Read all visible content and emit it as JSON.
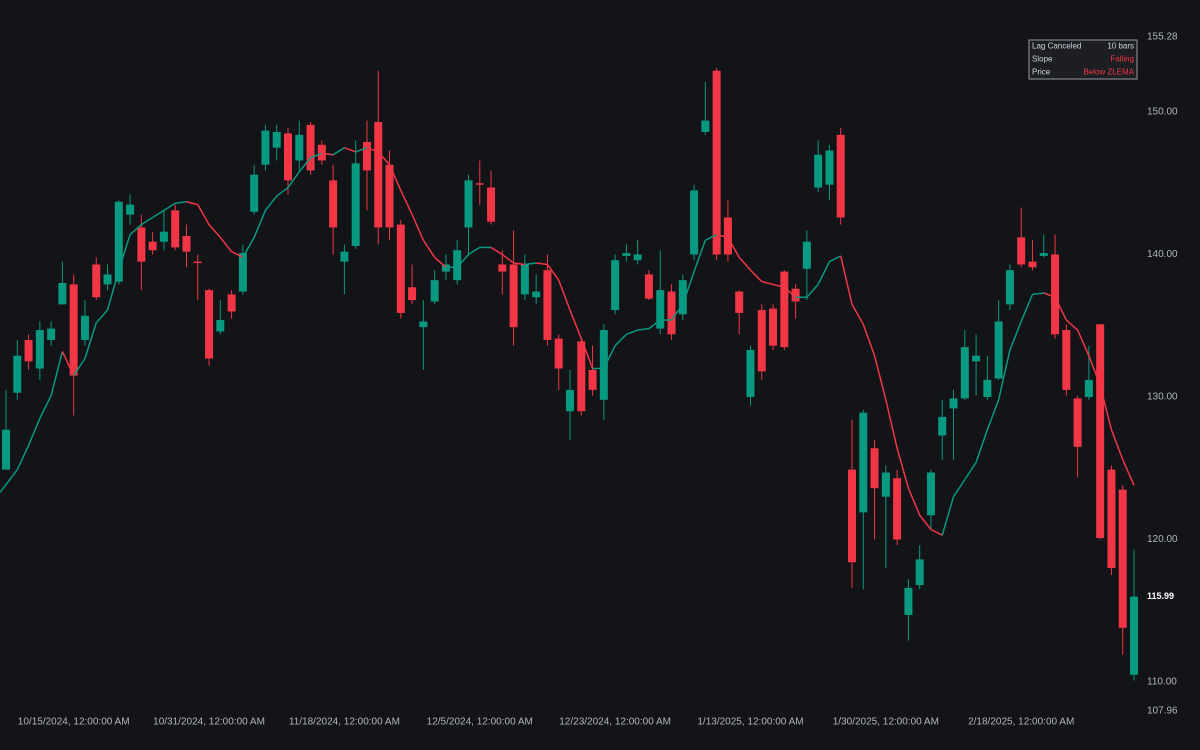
{
  "chart_data": {
    "type": "candlestick",
    "categories": [
      null,
      null,
      null,
      null,
      null,
      null,
      "10/15/2024, 12:00:00 AM",
      null,
      null,
      null,
      null,
      null,
      null,
      null,
      null,
      null,
      null,
      null,
      "10/31/2024, 12:00:00 AM",
      null,
      null,
      null,
      null,
      null,
      null,
      null,
      null,
      null,
      null,
      null,
      "11/18/2024, 12:00:00 AM",
      null,
      null,
      null,
      null,
      null,
      null,
      null,
      null,
      null,
      null,
      null,
      "12/5/2024, 12:00:00 AM",
      null,
      null,
      null,
      null,
      null,
      null,
      null,
      null,
      null,
      null,
      null,
      "12/23/2024, 12:00:00 AM",
      null,
      null,
      null,
      null,
      null,
      null,
      null,
      null,
      null,
      null,
      null,
      "1/13/2025, 12:00:00 AM",
      null,
      null,
      null,
      null,
      null,
      null,
      null,
      null,
      null,
      null,
      null,
      "1/30/2025, 12:00:00 AM",
      null,
      null,
      null,
      null,
      null,
      null,
      null,
      null,
      null,
      null,
      null,
      "2/18/2025, 12:00:00 AM",
      null,
      null,
      null,
      null,
      null,
      null,
      null,
      null,
      null,
      null
    ],
    "open": [
      124.9,
      130.3,
      134,
      132,
      134,
      136.5,
      137.9,
      134,
      139.3,
      137.9,
      138.1,
      142.8,
      141.9,
      140.9,
      140.9,
      143.1,
      141.3,
      139.5,
      137.5,
      134.6,
      137.2,
      137.4,
      143,
      146.3,
      147.5,
      148.5,
      146.6,
      149.1,
      147.7,
      145.2,
      139.5,
      140.6,
      147.9,
      149.3,
      146.3,
      142.1,
      137.7,
      134.9,
      136.7,
      138.8,
      138.2,
      141.9,
      145,
      144.7,
      139.3,
      139.3,
      137.2,
      137,
      138.9,
      134.1,
      129,
      133.9,
      131.9,
      129.8,
      136.1,
      139.9,
      139.6,
      138.6,
      134.8,
      137.4,
      135.8,
      140,
      148.6,
      152.9,
      142.6,
      137.4,
      130,
      136.1,
      136.2,
      138.8,
      137.6,
      139,
      144.7,
      144.9,
      148.4,
      124.9,
      121.9,
      126.4,
      123,
      124.3,
      114.7,
      116.8,
      121.7,
      127.3,
      129.2,
      129.9,
      132.5,
      130,
      131.3,
      136.5,
      141.2,
      139.5,
      139.9,
      140,
      134.7,
      129.9,
      130,
      135.1,
      124.9,
      123.5,
      110.5
    ],
    "high": [
      130.5,
      134,
      134.4,
      135.3,
      135.3,
      139.5,
      138.6,
      136.8,
      139.8,
      139.3,
      143.8,
      144.2,
      142.8,
      141.6,
      143.1,
      143.5,
      142.1,
      140,
      137.6,
      136.8,
      137.5,
      140.7,
      146.3,
      149.1,
      149.1,
      148.9,
      149.4,
      149.3,
      148,
      146.3,
      140.7,
      148,
      149.4,
      152.9,
      147.3,
      142.4,
      139.3,
      136.8,
      138.9,
      140,
      141,
      145.6,
      146.6,
      145.9,
      140.3,
      141.7,
      140,
      138.6,
      140,
      134.4,
      131.9,
      134,
      133.6,
      135.1,
      140,
      140.7,
      141,
      138.9,
      140.3,
      137.9,
      138.6,
      144.9,
      152.1,
      153.1,
      143.8,
      137.5,
      133.6,
      136.5,
      136.5,
      138.9,
      137.9,
      141.7,
      148,
      147.7,
      148.9,
      128.4,
      129.1,
      127,
      125.2,
      124.9,
      117.2,
      119.6,
      124.9,
      129.8,
      130.5,
      134.7,
      134.4,
      132.9,
      136.8,
      139.3,
      143.3,
      141,
      141.4,
      141.4,
      135.1,
      130.1,
      133.6,
      135.1,
      125.2,
      123.8,
      119.3
    ],
    "low": [
      124.9,
      129.8,
      131.9,
      131.2,
      133.6,
      136.5,
      128.7,
      133.6,
      136.8,
      137.5,
      137.9,
      142.1,
      137.5,
      140,
      140.3,
      140.3,
      139.1,
      136.8,
      132.2,
      134.4,
      135.5,
      137.2,
      142.8,
      145.9,
      146.6,
      144.2,
      145.9,
      145.6,
      146.3,
      140,
      137.2,
      140.4,
      143.1,
      140.7,
      141,
      135.5,
      136.5,
      131.9,
      136.5,
      138.2,
      137.9,
      140,
      143.5,
      142.1,
      137.2,
      133.6,
      136.8,
      136.5,
      133.6,
      130.5,
      127,
      128.7,
      130.1,
      128.4,
      135.8,
      139.5,
      139.3,
      136.8,
      134.4,
      134,
      135.4,
      139.6,
      148.4,
      139.6,
      139.5,
      134.4,
      129.4,
      131.2,
      133.3,
      133.3,
      135.5,
      136.8,
      144.4,
      143.8,
      142.1,
      116.6,
      116.5,
      120,
      118,
      119.6,
      112.9,
      116.5,
      120.7,
      125.6,
      125.6,
      129.8,
      130.1,
      129.8,
      131.2,
      136.1,
      139.1,
      138.9,
      139.8,
      134.1,
      130.1,
      124.4,
      129.8,
      120,
      117.5,
      111.9,
      110.1
    ],
    "close": [
      127.7,
      132.9,
      132.5,
      134.7,
      134.8,
      138,
      131.5,
      135.7,
      137,
      138.6,
      143.7,
      143.5,
      139.5,
      140.3,
      141.6,
      140.5,
      140.2,
      139.4,
      132.7,
      135.4,
      136,
      140.1,
      145.6,
      148.7,
      148.6,
      145.2,
      148.4,
      145.9,
      146.6,
      141.9,
      140.2,
      146.4,
      145.9,
      141.9,
      141.9,
      135.9,
      136.8,
      135.3,
      138.2,
      139.3,
      140.3,
      145.2,
      144.9,
      142.3,
      138.8,
      134.9,
      139.3,
      137.4,
      134,
      132,
      130.5,
      129,
      130.5,
      134.7,
      139.6,
      140.1,
      140,
      136.9,
      137.5,
      134.4,
      138.2,
      144.5,
      149.4,
      140,
      140,
      135.9,
      133.3,
      131.8,
      133.6,
      133.5,
      136.7,
      140.9,
      147,
      147.3,
      142.6,
      118.4,
      128.9,
      123.6,
      124.7,
      120,
      116.6,
      118.6,
      124.7,
      128.6,
      129.9,
      133.5,
      132.9,
      131.2,
      135.3,
      138.9,
      139.3,
      139.1,
      140.1,
      134.4,
      130.5,
      126.5,
      131.2,
      120.1,
      118,
      113.8,
      115.99
    ],
    "up_color": "#089981",
    "down_color": "#f23645",
    "overlay": {
      "up_color": "#089981",
      "down_color": "#f23645",
      "values": [
        123.3,
        124.9,
        126.6,
        128.5,
        130.1,
        133.2,
        131.5,
        132.7,
        135.2,
        136.1,
        138.9,
        141.4,
        142.1,
        142.6,
        143.1,
        143.6,
        143.7,
        143.5,
        142.1,
        141.2,
        140.2,
        139.8,
        141.2,
        143.1,
        144.1,
        144.7,
        145.8,
        146.8,
        147.1,
        147.0,
        147.5,
        147.2,
        147.5,
        147.2,
        146.3,
        144.5,
        142.8,
        141.0,
        139.8,
        139.1,
        139.1,
        140,
        140.5,
        140.5,
        140,
        139.4,
        139.3,
        139.4,
        139.3,
        138.2,
        136.1,
        134.1,
        132,
        132,
        133.6,
        134.4,
        134.7,
        134.8,
        135.4,
        135.4,
        136.5,
        138.8,
        141.0,
        141.4,
        141.2,
        139.8,
        138.9,
        138.1,
        137.9,
        137.7,
        137,
        137,
        137.9,
        139.5,
        139.9,
        136.5,
        135.1,
        132.9,
        129.8,
        126.4,
        123.6,
        121.7,
        120.7,
        120.3,
        123,
        124.2,
        125.4,
        127.7,
        129.8,
        133.3,
        135.3,
        137.2,
        137.3,
        137.0,
        135.4,
        134.7,
        132.9,
        130.8,
        127.7,
        125.6,
        123.8
      ]
    },
    "ylim": [
      107.96,
      155.28
    ],
    "yticks": [
      107.96,
      {
        "value": 110,
        "label": "110.00"
      },
      {
        "value": 120,
        "label": "120.00"
      },
      {
        "value": 130,
        "label": "130.00"
      },
      {
        "value": 140,
        "label": "140.00"
      },
      {
        "value": 150,
        "label": "150.00"
      },
      155.28
    ],
    "grid": false,
    "info_panel": [
      {
        "label": "Lag Canceled",
        "value": "10 bars",
        "color": "#d1d4dc"
      },
      {
        "label": "Slope",
        "value": "Falling",
        "color": "#f23645"
      },
      {
        "label": "Price",
        "value": "Below ZLEMA",
        "color": "#f23645"
      }
    ]
  }
}
